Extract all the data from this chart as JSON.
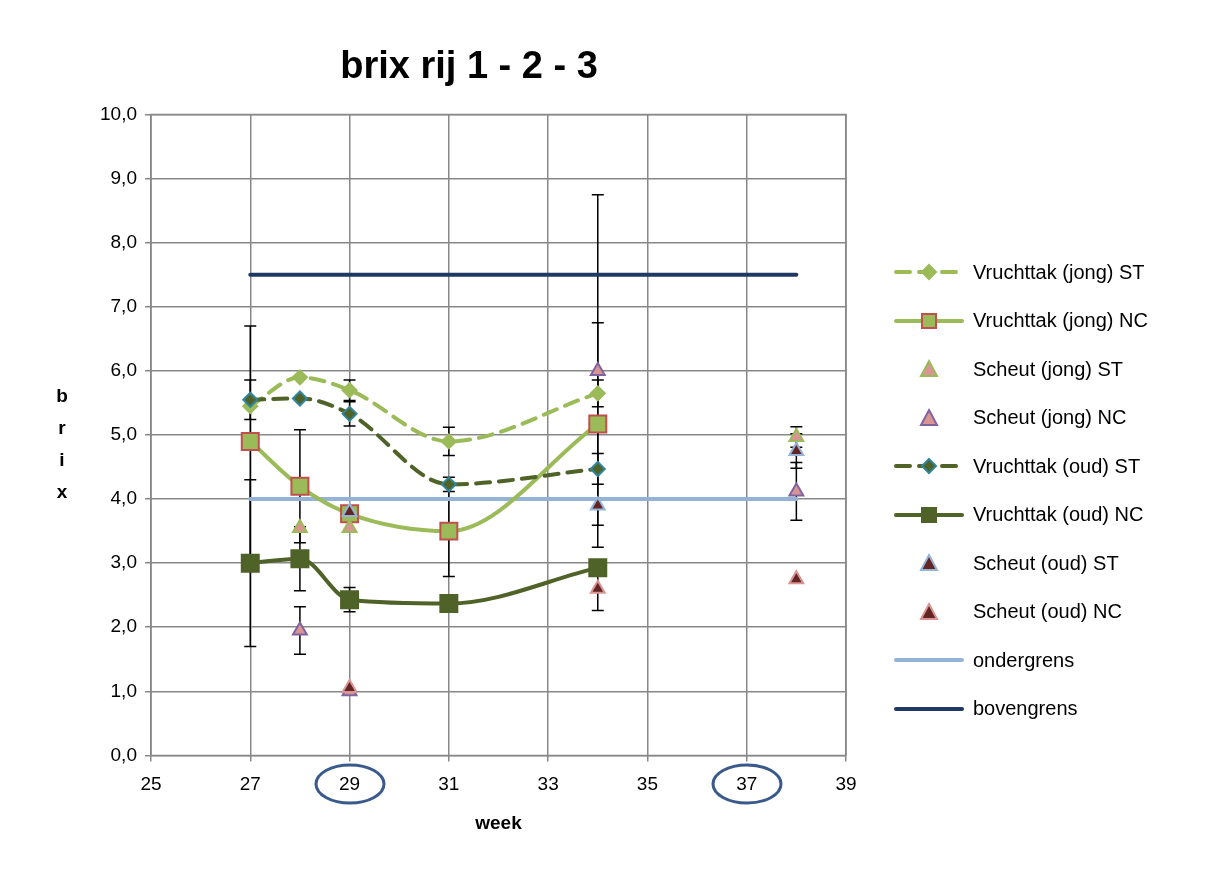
{
  "chart_data": {
    "type": "line",
    "title": "brix rij 1 - 2 - 3",
    "xlabel": "week",
    "ylabel": "brix",
    "xlim": [
      25,
      39
    ],
    "xticks": [
      25,
      27,
      29,
      31,
      33,
      35,
      37,
      39
    ],
    "ylim": [
      0,
      10
    ],
    "yticks": [
      {
        "value": 0,
        "label": "0,0"
      },
      {
        "value": 1,
        "label": "1,0"
      },
      {
        "value": 2,
        "label": "2,0"
      },
      {
        "value": 3,
        "label": "3,0"
      },
      {
        "value": 4,
        "label": "4,0"
      },
      {
        "value": 5,
        "label": "5,0"
      },
      {
        "value": 6,
        "label": "6,0"
      },
      {
        "value": 7,
        "label": "7,0"
      },
      {
        "value": 8,
        "label": "8,0"
      },
      {
        "value": 9,
        "label": "9,0"
      },
      {
        "value": 10,
        "label": "10,0"
      }
    ],
    "grid": true,
    "legend": "right",
    "series": [
      {
        "name": "Vruchttak (jong) ST",
        "type": "line",
        "color": "#9bbb59",
        "marker": "diamond",
        "line_style": "dashed",
        "x": [
          27,
          28,
          29,
          31,
          34
        ],
        "values": [
          5.45,
          5.9,
          5.7,
          4.9,
          5.65
        ],
        "errors": [
          null,
          null,
          0.16,
          0.22,
          0.21
        ]
      },
      {
        "name": "Vruchttak (jong) NC",
        "type": "line",
        "color": "#9bbb59",
        "marker": "square",
        "line_style": "solid",
        "x": [
          27,
          28,
          29,
          31,
          34
        ],
        "values": [
          4.9,
          4.2,
          3.77,
          3.5,
          5.17
        ],
        "errors": [
          1.8,
          0.88,
          null,
          0.71,
          1.58
        ]
      },
      {
        "name": "Scheut (jong) ST",
        "type": "scatter",
        "color": "#d99594",
        "marker": "triangle",
        "x": [
          28,
          29,
          38
        ],
        "values": [
          3.55,
          3.55,
          4.97
        ],
        "errors": [
          null,
          null,
          0.16
        ]
      },
      {
        "name": "Scheut (jong) NC",
        "type": "scatter",
        "color": "#d99594",
        "marker": "triangle",
        "x": [
          28,
          29,
          34,
          38
        ],
        "values": [
          1.95,
          1.0,
          6.0,
          4.12
        ],
        "errors": [
          0.37,
          null,
          2.75,
          0.45
        ]
      },
      {
        "name": "Vruchttak (oud) ST",
        "type": "line",
        "color": "#4f6228",
        "marker": "diamond",
        "line_style": "dashed",
        "x": [
          27,
          28,
          29,
          31,
          34
        ],
        "values": [
          5.55,
          5.57,
          5.33,
          4.23,
          4.47
        ],
        "errors": [
          0.31,
          null,
          0.19,
          0.11,
          0.24
        ]
      },
      {
        "name": "Vruchttak (oud) NC",
        "type": "line",
        "color": "#4f6228",
        "marker": "square",
        "line_style": "solid",
        "x": [
          27,
          28,
          29,
          31,
          34
        ],
        "values": [
          3.0,
          3.07,
          2.43,
          2.37,
          2.93
        ],
        "errors": [
          1.3,
          0.5,
          0.19,
          null,
          null
        ]
      },
      {
        "name": "Scheut (oud) ST",
        "type": "scatter",
        "color": "#632523",
        "marker": "triangle",
        "x": [
          29,
          34,
          38
        ],
        "values": [
          3.8,
          3.9,
          4.75
        ],
        "errors": [
          null,
          null,
          0.27
        ]
      },
      {
        "name": "Scheut (oud) NC",
        "type": "scatter",
        "color": "#632523",
        "marker": "triangle",
        "x": [
          29,
          34,
          38
        ],
        "values": [
          1.05,
          2.6,
          2.75
        ],
        "errors": [
          null,
          0.34,
          null
        ]
      },
      {
        "name": "ondergrens",
        "type": "line",
        "color": "#95b3d7",
        "marker": "none",
        "line_style": "solid",
        "x": [
          27,
          38
        ],
        "values": [
          4.0,
          4.0
        ]
      },
      {
        "name": "bovengrens",
        "type": "line",
        "color": "#1f3864",
        "marker": "none",
        "line_style": "solid",
        "x": [
          27,
          38
        ],
        "values": [
          7.5,
          7.5
        ]
      }
    ]
  }
}
